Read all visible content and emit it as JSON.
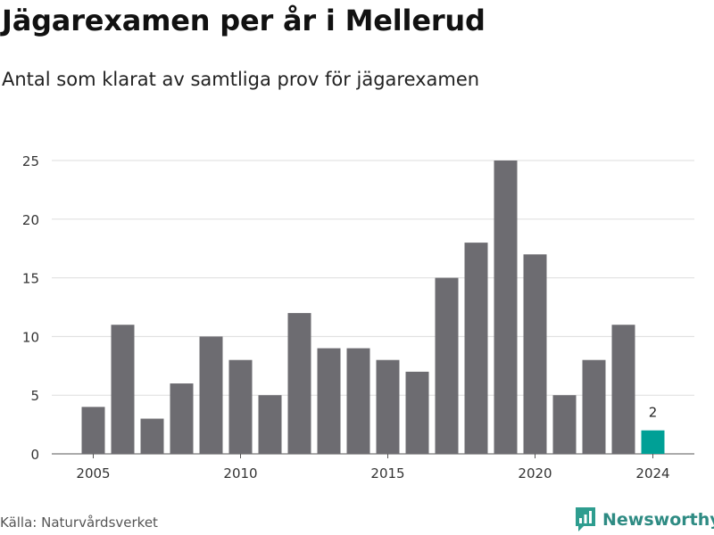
{
  "title": "Jägarexamen per år i Mellerud",
  "subtitle": "Antal som klarat av samtliga prov för jägarexamen",
  "source": "Källa: Naturvårdsverket",
  "brand": {
    "name": "Newsworthy",
    "icon": "newsworthy-logo-icon",
    "color": "#2e9d8f"
  },
  "colors": {
    "bar": "#6d6c71",
    "highlight": "#00a096",
    "grid": "#dddddd"
  },
  "chart_data": {
    "type": "bar",
    "categories": [
      "2005",
      "2006",
      "2007",
      "2008",
      "2009",
      "2010",
      "2011",
      "2012",
      "2013",
      "2014",
      "2015",
      "2016",
      "2017",
      "2018",
      "2019",
      "2020",
      "2021",
      "2022",
      "2023",
      "2024"
    ],
    "values": [
      4,
      11,
      3,
      6,
      10,
      8,
      5,
      12,
      9,
      9,
      8,
      7,
      15,
      18,
      25,
      17,
      5,
      8,
      11,
      2
    ],
    "highlight_index": 19,
    "highlight_label": "2",
    "x_tick_labels": [
      "2005",
      "2010",
      "2015",
      "2020",
      "2024"
    ],
    "y_ticks": [
      0,
      5,
      10,
      15,
      20,
      25
    ],
    "ylim": [
      0,
      25
    ],
    "grid": true,
    "xlabel": "",
    "ylabel": ""
  }
}
